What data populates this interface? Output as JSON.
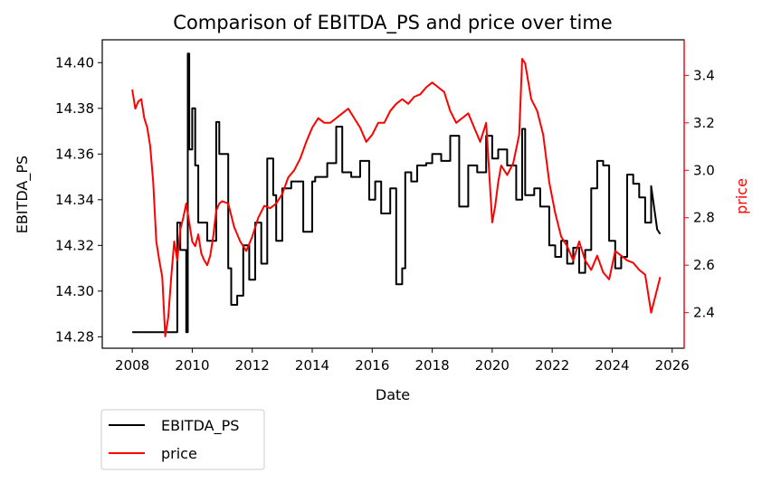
{
  "chart_data": {
    "type": "line",
    "title": "Comparison of EBITDA_PS and price over time",
    "xlabel": "Date",
    "ylabel_left": "EBITDA_PS",
    "ylabel_right": "price",
    "xlim": [
      2007.0,
      2026.4
    ],
    "ylim_left": [
      14.275,
      14.41
    ],
    "ylim_right": [
      2.25,
      3.55
    ],
    "x_ticks": [
      "2008",
      "2010",
      "2012",
      "2014",
      "2016",
      "2018",
      "2020",
      "2022",
      "2024",
      "2026"
    ],
    "x_tick_values": [
      2008,
      2010,
      2012,
      2014,
      2016,
      2018,
      2020,
      2022,
      2024,
      2026
    ],
    "y_ticks_left": [
      "14.28",
      "14.30",
      "14.32",
      "14.34",
      "14.36",
      "14.38",
      "14.40"
    ],
    "y_tick_values_left": [
      14.28,
      14.3,
      14.32,
      14.34,
      14.36,
      14.38,
      14.4
    ],
    "y_ticks_right": [
      "2.4",
      "2.6",
      "2.8",
      "3.0",
      "3.2",
      "3.4"
    ],
    "y_tick_values_right": [
      2.4,
      2.6,
      2.8,
      3.0,
      3.2,
      3.4
    ],
    "grid": false,
    "legend_position": "below-left",
    "legend": [
      "EBITDA_PS",
      "price"
    ],
    "colors": {
      "EBITDA_PS": "#000000",
      "price": "#ff0000",
      "right_axis": "#ff0000"
    },
    "series": [
      {
        "name": "EBITDA_PS",
        "axis": "left",
        "x": [
          2008.0,
          2009.5,
          2009.5,
          2009.6,
          2009.6,
          2009.8,
          2009.8,
          2009.85,
          2009.85,
          2009.9,
          2009.9,
          2010.0,
          2010.0,
          2010.1,
          2010.1,
          2010.2,
          2010.2,
          2010.5,
          2010.5,
          2010.8,
          2010.8,
          2010.9,
          2010.9,
          2011.2,
          2011.2,
          2011.3,
          2011.3,
          2011.5,
          2011.5,
          2011.7,
          2011.7,
          2011.9,
          2011.9,
          2012.1,
          2012.1,
          2012.3,
          2012.3,
          2012.5,
          2012.5,
          2012.7,
          2012.7,
          2012.8,
          2012.8,
          2013.0,
          2013.0,
          2013.3,
          2013.3,
          2013.7,
          2013.7,
          2014.0,
          2014.0,
          2014.1,
          2014.1,
          2014.5,
          2014.5,
          2014.8,
          2014.8,
          2015.0,
          2015.0,
          2015.3,
          2015.3,
          2015.6,
          2015.6,
          2015.9,
          2015.9,
          2016.1,
          2016.1,
          2016.3,
          2016.3,
          2016.6,
          2016.6,
          2016.8,
          2016.8,
          2017.0,
          2017.0,
          2017.1,
          2017.1,
          2017.3,
          2017.3,
          2017.5,
          2017.5,
          2017.8,
          2017.8,
          2018.0,
          2018.0,
          2018.3,
          2018.3,
          2018.6,
          2018.6,
          2018.9,
          2018.9,
          2019.2,
          2019.2,
          2019.5,
          2019.5,
          2019.8,
          2019.8,
          2020.0,
          2020.0,
          2020.2,
          2020.2,
          2020.5,
          2020.5,
          2020.8,
          2020.8,
          2021.0,
          2021.0,
          2021.1,
          2021.1,
          2021.4,
          2021.4,
          2021.6,
          2021.6,
          2021.9,
          2021.9,
          2022.1,
          2022.1,
          2022.3,
          2022.3,
          2022.5,
          2022.5,
          2022.7,
          2022.7,
          2022.9,
          2022.9,
          2023.1,
          2023.1,
          2023.3,
          2023.3,
          2023.5,
          2023.5,
          2023.7,
          2023.7,
          2023.9,
          2023.9,
          2024.1,
          2024.1,
          2024.3,
          2024.3,
          2024.5,
          2024.5,
          2024.7,
          2024.7,
          2024.9,
          2024.9,
          2025.1,
          2025.1,
          2025.3,
          2025.3,
          2025.5,
          2025.6
        ],
        "values": [
          14.282,
          14.282,
          14.33,
          14.33,
          14.318,
          14.318,
          14.282,
          14.282,
          14.404,
          14.404,
          14.362,
          14.362,
          14.38,
          14.38,
          14.355,
          14.355,
          14.33,
          14.33,
          14.322,
          14.322,
          14.374,
          14.374,
          14.36,
          14.36,
          14.31,
          14.31,
          14.294,
          14.294,
          14.298,
          14.298,
          14.32,
          14.32,
          14.305,
          14.305,
          14.33,
          14.33,
          14.312,
          14.312,
          14.358,
          14.358,
          14.342,
          14.342,
          14.322,
          14.322,
          14.345,
          14.345,
          14.348,
          14.348,
          14.326,
          14.326,
          14.348,
          14.348,
          14.35,
          14.35,
          14.356,
          14.356,
          14.372,
          14.372,
          14.352,
          14.352,
          14.35,
          14.35,
          14.357,
          14.357,
          14.34,
          14.34,
          14.348,
          14.348,
          14.334,
          14.334,
          14.345,
          14.345,
          14.303,
          14.303,
          14.31,
          14.31,
          14.352,
          14.352,
          14.348,
          14.348,
          14.355,
          14.355,
          14.356,
          14.356,
          14.36,
          14.36,
          14.357,
          14.357,
          14.368,
          14.368,
          14.337,
          14.337,
          14.355,
          14.355,
          14.352,
          14.352,
          14.368,
          14.368,
          14.358,
          14.358,
          14.362,
          14.362,
          14.355,
          14.355,
          14.34,
          14.34,
          14.371,
          14.371,
          14.342,
          14.342,
          14.345,
          14.345,
          14.337,
          14.337,
          14.32,
          14.32,
          14.315,
          14.315,
          14.322,
          14.322,
          14.312,
          14.312,
          14.319,
          14.319,
          14.308,
          14.308,
          14.318,
          14.318,
          14.345,
          14.345,
          14.357,
          14.357,
          14.355,
          14.355,
          14.322,
          14.322,
          14.31,
          14.31,
          14.315,
          14.315,
          14.351,
          14.351,
          14.347,
          14.347,
          14.341,
          14.341,
          14.33,
          14.33,
          14.346,
          14.327,
          14.325
        ]
      },
      {
        "name": "price",
        "axis": "right",
        "x": [
          2008.0,
          2008.1,
          2008.2,
          2008.3,
          2008.4,
          2008.5,
          2008.6,
          2008.7,
          2008.8,
          2008.9,
          2009.0,
          2009.1,
          2009.2,
          2009.3,
          2009.4,
          2009.5,
          2009.6,
          2009.7,
          2009.8,
          2009.9,
          2010.0,
          2010.1,
          2010.2,
          2010.3,
          2010.4,
          2010.5,
          2010.6,
          2010.7,
          2010.8,
          2010.9,
          2011.0,
          2011.2,
          2011.4,
          2011.6,
          2011.8,
          2012.0,
          2012.2,
          2012.4,
          2012.6,
          2012.8,
          2013.0,
          2013.2,
          2013.4,
          2013.6,
          2013.8,
          2014.0,
          2014.2,
          2014.4,
          2014.6,
          2014.8,
          2015.0,
          2015.2,
          2015.4,
          2015.6,
          2015.8,
          2016.0,
          2016.2,
          2016.4,
          2016.6,
          2016.8,
          2017.0,
          2017.2,
          2017.4,
          2017.6,
          2017.8,
          2018.0,
          2018.2,
          2018.4,
          2018.6,
          2018.8,
          2019.0,
          2019.2,
          2019.4,
          2019.6,
          2019.8,
          2020.0,
          2020.1,
          2020.2,
          2020.3,
          2020.5,
          2020.7,
          2020.9,
          2021.0,
          2021.1,
          2021.3,
          2021.5,
          2021.7,
          2021.9,
          2022.1,
          2022.3,
          2022.5,
          2022.7,
          2022.9,
          2023.1,
          2023.3,
          2023.5,
          2023.7,
          2023.9,
          2024.1,
          2024.3,
          2024.5,
          2024.7,
          2024.9,
          2025.1,
          2025.3,
          2025.5,
          2025.6
        ],
        "values": [
          3.34,
          3.26,
          3.29,
          3.3,
          3.22,
          3.18,
          3.1,
          2.95,
          2.7,
          2.62,
          2.55,
          2.3,
          2.38,
          2.55,
          2.7,
          2.62,
          2.75,
          2.8,
          2.86,
          2.78,
          2.7,
          2.68,
          2.73,
          2.65,
          2.62,
          2.6,
          2.64,
          2.72,
          2.83,
          2.86,
          2.87,
          2.86,
          2.76,
          2.7,
          2.66,
          2.72,
          2.8,
          2.85,
          2.84,
          2.86,
          2.9,
          2.97,
          3.0,
          3.05,
          3.12,
          3.18,
          3.22,
          3.2,
          3.2,
          3.22,
          3.24,
          3.26,
          3.22,
          3.18,
          3.12,
          3.15,
          3.2,
          3.2,
          3.25,
          3.28,
          3.3,
          3.28,
          3.31,
          3.32,
          3.35,
          3.37,
          3.35,
          3.33,
          3.25,
          3.2,
          3.22,
          3.24,
          3.18,
          3.12,
          3.2,
          2.78,
          2.85,
          2.95,
          3.02,
          2.98,
          3.03,
          3.15,
          3.47,
          3.45,
          3.3,
          3.25,
          3.15,
          2.95,
          2.82,
          2.72,
          2.68,
          2.62,
          2.7,
          2.62,
          2.58,
          2.64,
          2.57,
          2.54,
          2.66,
          2.64,
          2.62,
          2.61,
          2.58,
          2.56,
          2.4,
          2.5,
          2.55
        ]
      }
    ]
  }
}
